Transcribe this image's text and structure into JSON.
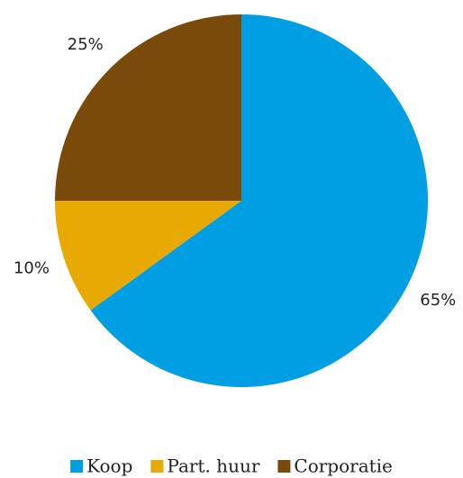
{
  "chart_data": {
    "type": "pie",
    "start_angle": 90,
    "direction": "clockwise",
    "legend": "bottom",
    "categories": [
      "Koop",
      "Part. huur",
      "Corporatie"
    ],
    "values": [
      65,
      10,
      25
    ],
    "value_labels": [
      "65%",
      "10%",
      "25%"
    ],
    "colors": [
      "#009fe3",
      "#e8a900",
      "#7a4a0b"
    ]
  }
}
